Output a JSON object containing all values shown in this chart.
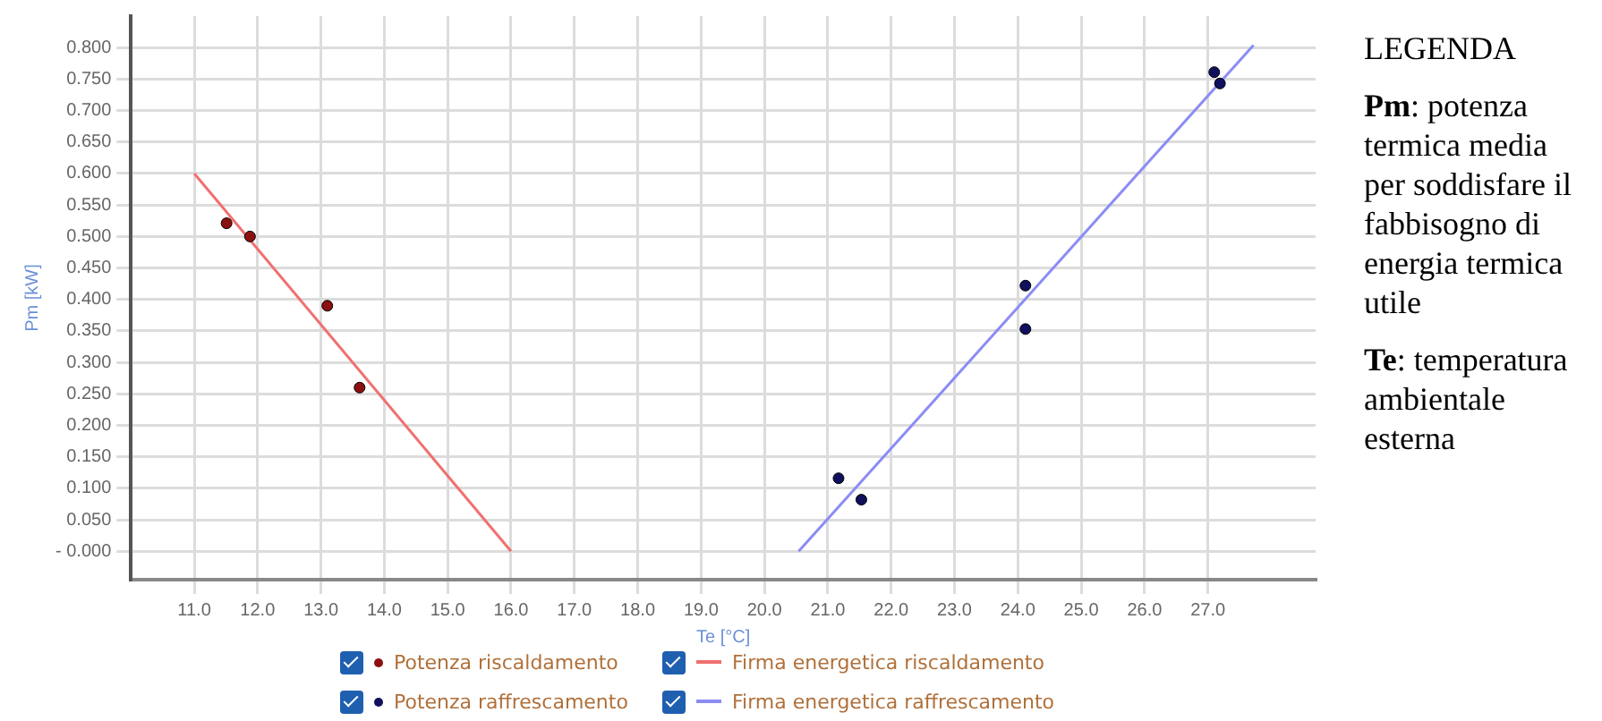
{
  "chart_data": {
    "type": "scatter",
    "xlabel": "Te [°C]",
    "ylabel": "Pm [kW]",
    "xlim": [
      10,
      28.7
    ],
    "ylim": [
      -0.045,
      0.85
    ],
    "xticks": [
      {
        "value": 11,
        "label": "11.0"
      },
      {
        "value": 12,
        "label": "12.0"
      },
      {
        "value": 13,
        "label": "13.0"
      },
      {
        "value": 14,
        "label": "14.0"
      },
      {
        "value": 15,
        "label": "15.0"
      },
      {
        "value": 16,
        "label": "16.0"
      },
      {
        "value": 17,
        "label": "17.0"
      },
      {
        "value": 18,
        "label": "18.0"
      },
      {
        "value": 19,
        "label": "19.0"
      },
      {
        "value": 20,
        "label": "20.0"
      },
      {
        "value": 21,
        "label": "21.0"
      },
      {
        "value": 22,
        "label": "22.0"
      },
      {
        "value": 23,
        "label": "23.0"
      },
      {
        "value": 24,
        "label": "24.0"
      },
      {
        "value": 25,
        "label": "25.0"
      },
      {
        "value": 26,
        "label": "26.0"
      },
      {
        "value": 27,
        "label": "27.0"
      }
    ],
    "yticks": [
      {
        "value": 0,
        "label": "- 0.000"
      },
      {
        "value": 0.05,
        "label": "0.050"
      },
      {
        "value": 0.1,
        "label": "0.100"
      },
      {
        "value": 0.15,
        "label": "0.150"
      },
      {
        "value": 0.2,
        "label": "0.200"
      },
      {
        "value": 0.25,
        "label": "0.250"
      },
      {
        "value": 0.3,
        "label": "0.300"
      },
      {
        "value": 0.35,
        "label": "0.350"
      },
      {
        "value": 0.4,
        "label": "0.400"
      },
      {
        "value": 0.45,
        "label": "0.450"
      },
      {
        "value": 0.5,
        "label": "0.500"
      },
      {
        "value": 0.55,
        "label": "0.550"
      },
      {
        "value": 0.6,
        "label": "0.600"
      },
      {
        "value": 0.65,
        "label": "0.650"
      },
      {
        "value": 0.7,
        "label": "0.700"
      },
      {
        "value": 0.75,
        "label": "0.750"
      },
      {
        "value": 0.8,
        "label": "0.800"
      }
    ],
    "grid": true,
    "legend": "bottom",
    "series": [
      {
        "name": "Potenza riscaldamento",
        "type": "scatter",
        "marker": "circle",
        "color": "#8b1010",
        "x": [
          11.51,
          11.88,
          13.1,
          13.61
        ],
        "values": [
          0.521,
          0.5,
          0.39,
          0.26
        ]
      },
      {
        "name": "Firma energetica riscaldamento",
        "type": "line",
        "marker": "none",
        "color": "#f07070",
        "x": [
          11.0,
          16.0
        ],
        "values": [
          0.6,
          0
        ]
      },
      {
        "name": "Potenza raffrescamento",
        "type": "scatter",
        "marker": "circle",
        "color": "#10105e",
        "x": [
          21.17,
          21.53,
          24.12,
          24.12,
          27.1,
          27.19
        ],
        "values": [
          0.116,
          0.082,
          0.422,
          0.353,
          0.761,
          0.743
        ]
      },
      {
        "name": "Firma energetica raffrescamento",
        "type": "line",
        "marker": "none",
        "color": "#8c8cf5",
        "x": [
          20.54,
          27.72
        ],
        "values": [
          0,
          0.804
        ]
      }
    ],
    "annotations": [
      "LEGENDA",
      "Pm: potenza termica media per soddisfare il fabbisogno di energia termica utile",
      "Te: temperatura ambientale esterna"
    ]
  }
}
